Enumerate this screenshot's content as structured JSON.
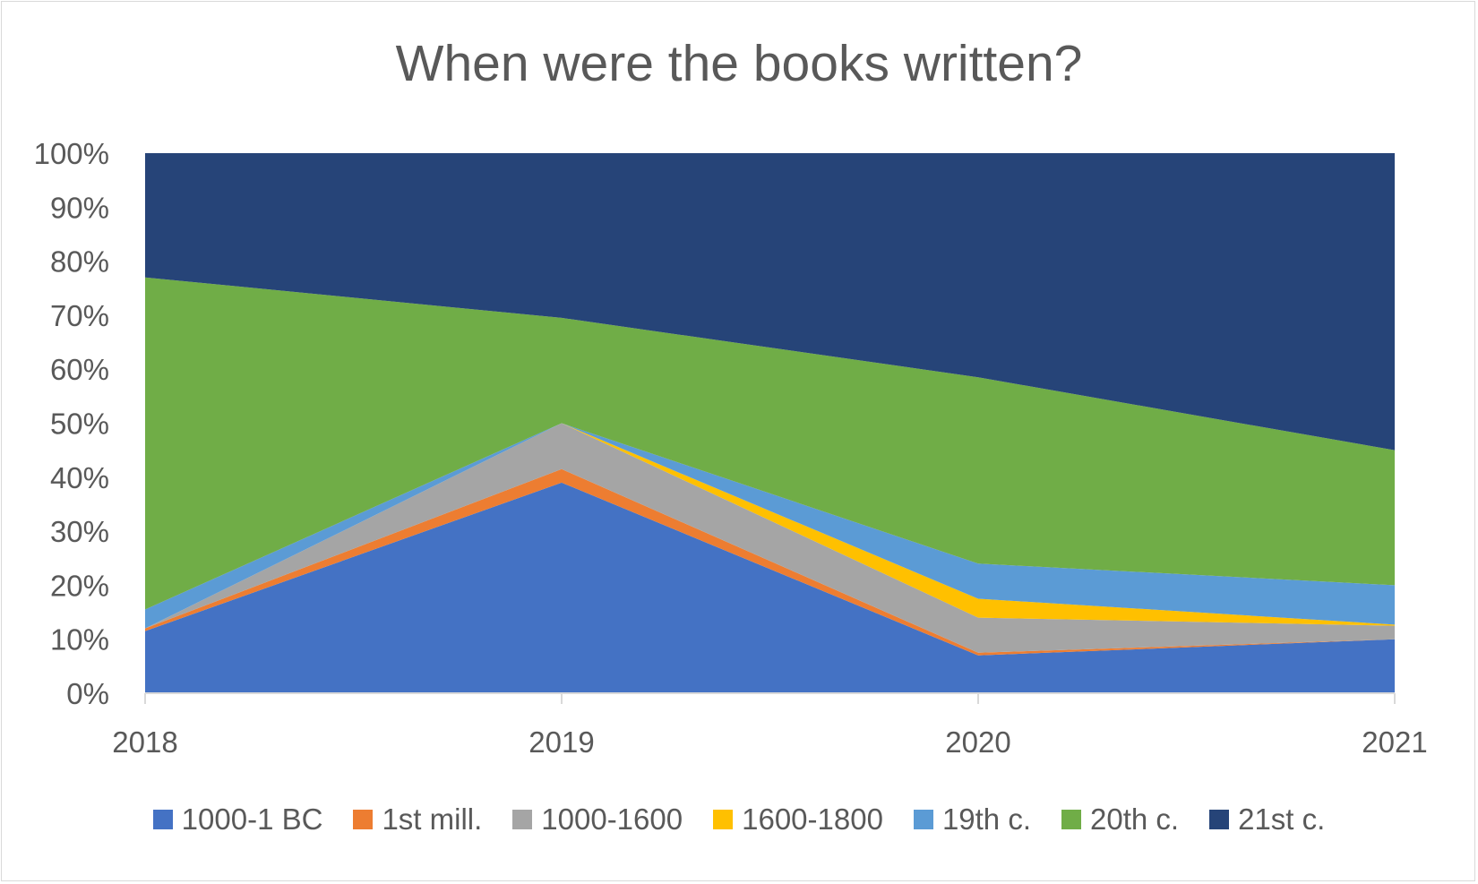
{
  "chart_data": {
    "type": "area",
    "stacked": true,
    "percent": true,
    "title": "When were the books written?",
    "x": [
      "2018",
      "2019",
      "2020",
      "2021"
    ],
    "yticks": [
      "0%",
      "10%",
      "20%",
      "30%",
      "40%",
      "50%",
      "60%",
      "70%",
      "80%",
      "90%",
      "100%"
    ],
    "ylim": [
      0,
      100
    ],
    "legend_position": "bottom",
    "grid": false,
    "series": [
      {
        "name": "1000-1 BC",
        "color": "#4472c4",
        "values": [
          11.5,
          39,
          7,
          10
        ]
      },
      {
        "name": "1st mill.",
        "color": "#ed7d31",
        "values": [
          0.5,
          2.5,
          0.5,
          0
        ]
      },
      {
        "name": "1000-1600",
        "color": "#a5a5a5",
        "values": [
          0,
          8.5,
          6.5,
          2.5
        ]
      },
      {
        "name": "1600-1800",
        "color": "#ffc000",
        "values": [
          0,
          0,
          3.5,
          0.2
        ]
      },
      {
        "name": "19th c.",
        "color": "#5b9bd5",
        "values": [
          3.5,
          0,
          6.5,
          7.3
        ]
      },
      {
        "name": "20th c.",
        "color": "#70ad47",
        "values": [
          61.5,
          19.5,
          34.5,
          25
        ]
      },
      {
        "name": "21st c.",
        "color": "#264478",
        "values": [
          23,
          30.5,
          41.5,
          55
        ]
      }
    ]
  }
}
